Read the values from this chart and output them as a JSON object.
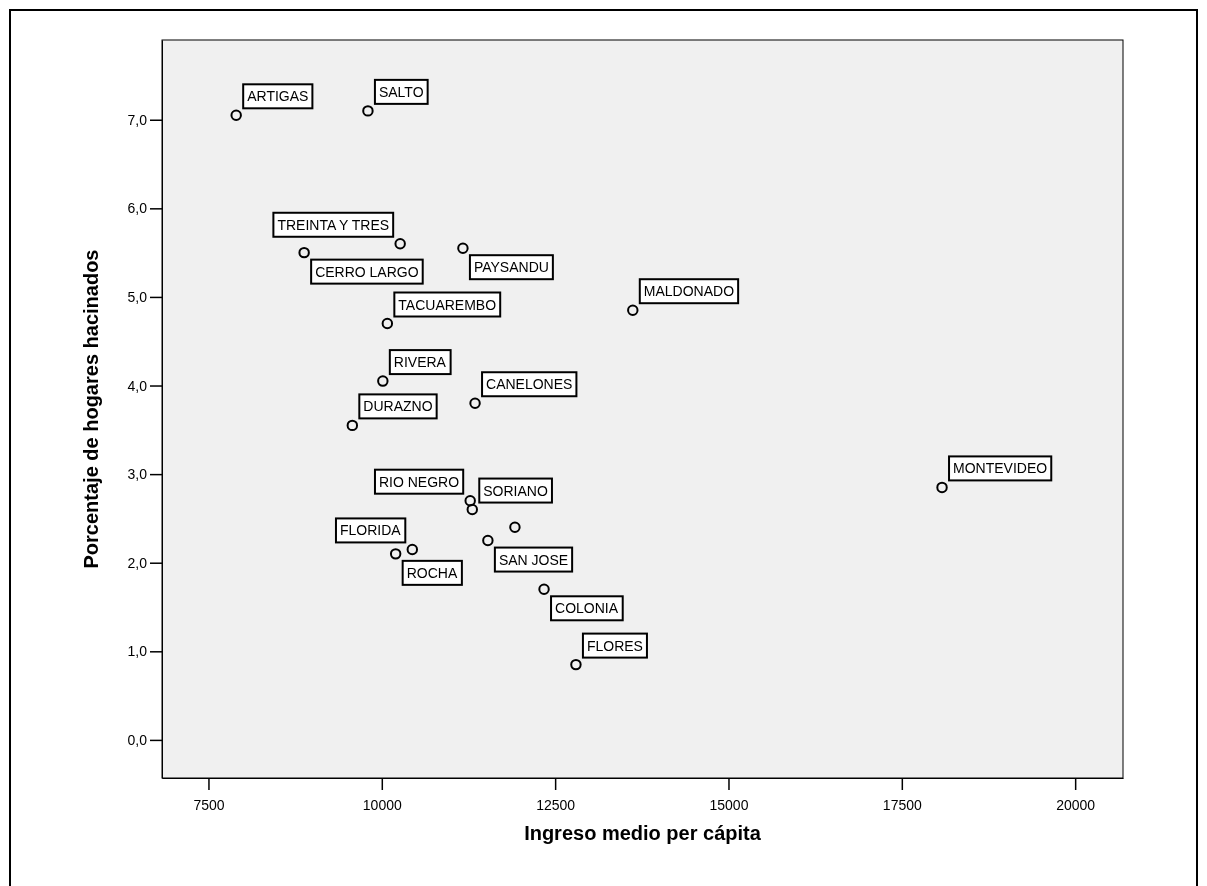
{
  "chart_data": {
    "type": "scatter",
    "xlabel": "Ingreso medio per cápita",
    "ylabel": "Porcentaje de hogares hacinados",
    "x": [
      7900,
      9800,
      10265,
      8880,
      11170,
      10080,
      13620,
      10015,
      11345,
      9575,
      18080,
      11275,
      11305,
      11920,
      11530,
      10440,
      10200,
      12340,
      12800
    ],
    "values": [
      7.05,
      7.1,
      5.6,
      5.5,
      5.55,
      4.7,
      4.85,
      4.05,
      3.8,
      3.55,
      2.85,
      2.7,
      2.6,
      2.4,
      2.25,
      2.15,
      2.1,
      1.7,
      0.85
    ],
    "color": "#000000",
    "marker": "circle",
    "xlim": [
      6830,
      20690
    ],
    "ylim": [
      -0.43,
      7.9
    ],
    "xticks": [
      7500,
      10000,
      12500,
      15000,
      17500,
      20000
    ],
    "yticks": [
      {
        "value": 0,
        "label": "0,0"
      },
      {
        "value": 1,
        "label": "1,0"
      },
      {
        "value": 2,
        "label": "2,0"
      },
      {
        "value": 3,
        "label": "3,0"
      },
      {
        "value": 4,
        "label": "4,0"
      },
      {
        "value": 5,
        "label": "5,0"
      },
      {
        "value": 6,
        "label": "6,0"
      },
      {
        "value": 7,
        "label": "7,0"
      }
    ],
    "grid": false,
    "annotations": [
      {
        "text": "ARTIGAS",
        "x": 7900,
        "y": 7.05
      },
      {
        "text": "SALTO",
        "x": 9800,
        "y": 7.1
      },
      {
        "text": "TREINTA Y TRES",
        "x": 10265,
        "y": 5.6
      },
      {
        "text": "CERRO LARGO",
        "x": 8880,
        "y": 5.5
      },
      {
        "text": "PAYSANDU",
        "x": 11170,
        "y": 5.55
      },
      {
        "text": "TACUAREMBO",
        "x": 10080,
        "y": 4.7
      },
      {
        "text": "MALDONADO",
        "x": 13620,
        "y": 4.85
      },
      {
        "text": "RIVERA",
        "x": 10015,
        "y": 4.05
      },
      {
        "text": "CANELONES",
        "x": 11345,
        "y": 3.8
      },
      {
        "text": "DURAZNO",
        "x": 9575,
        "y": 3.55
      },
      {
        "text": "MONTEVIDEO",
        "x": 18080,
        "y": 2.85
      },
      {
        "text": "RIO NEGRO",
        "x": 11275,
        "y": 2.7
      },
      {
        "text": "SORIANO",
        "x": 11305,
        "y": 2.6
      },
      {
        "text": "SAN JOSE",
        "x": 11530,
        "y": 2.25
      },
      {
        "text": "ROCHA",
        "x": 10200,
        "y": 2.1
      },
      {
        "text": "FLORIDA",
        "x": 10440,
        "y": 2.15
      },
      {
        "text": "COLONIA",
        "x": 12340,
        "y": 1.7
      },
      {
        "text": "FLORES",
        "x": 12800,
        "y": 0.85
      }
    ]
  }
}
